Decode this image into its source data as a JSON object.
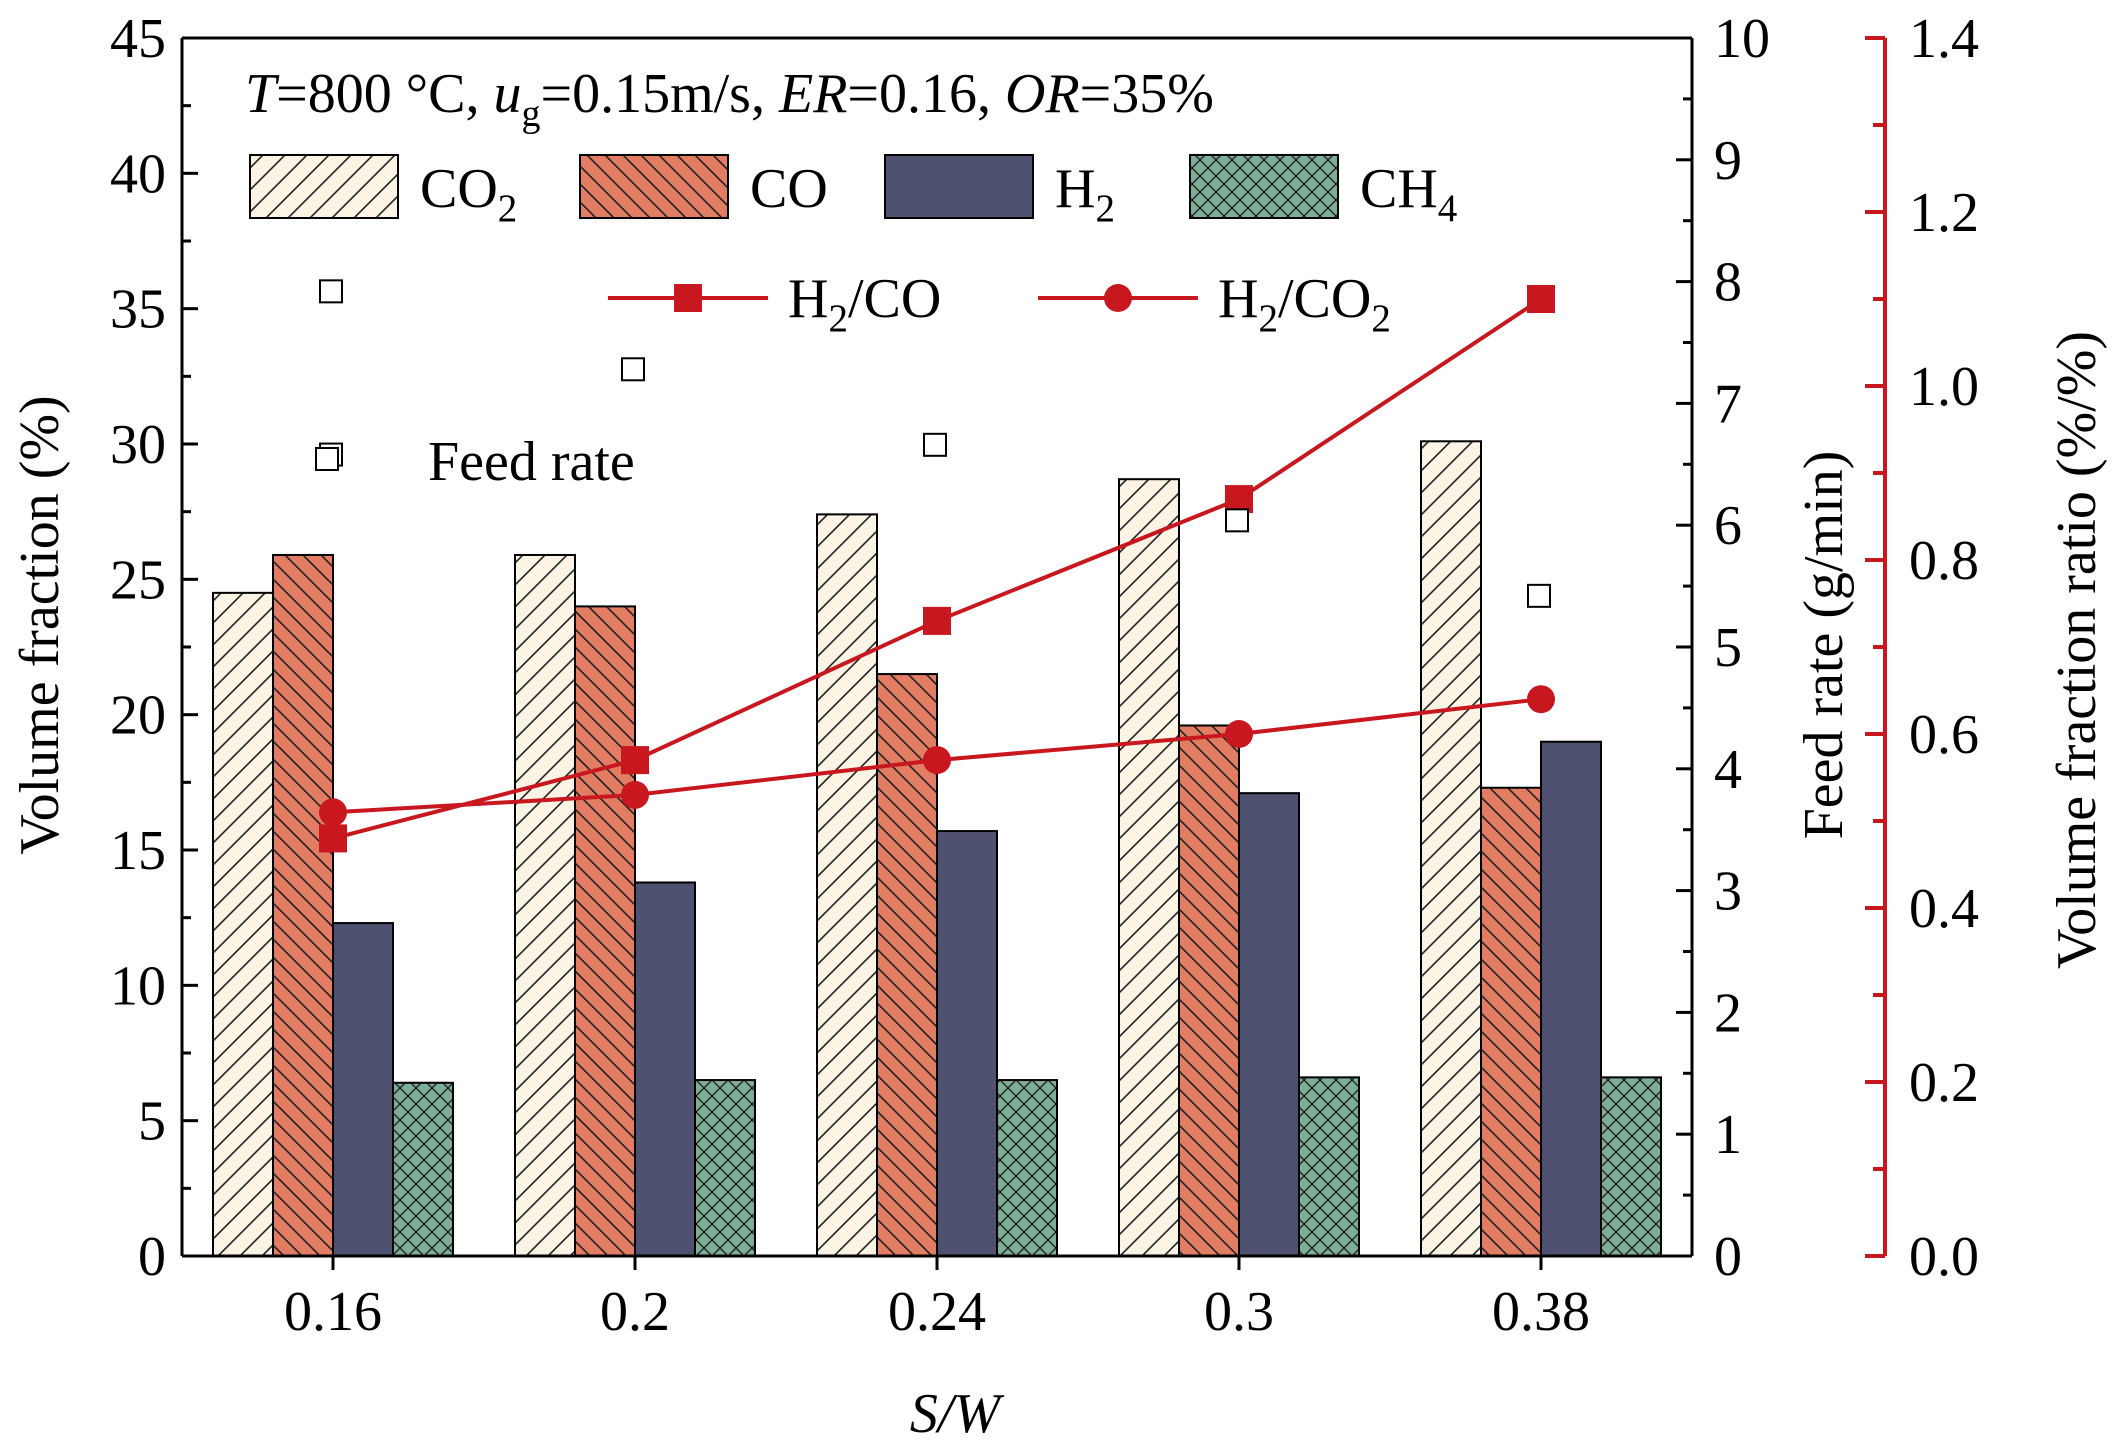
{
  "chart_data": {
    "type": "bar",
    "annotation": {
      "T_var": "T",
      "T_val": "=800 °C, ",
      "u_var": "u",
      "u_sub": "g",
      "u_val": "=0.15m/s, ",
      "ER_var": "ER",
      "ER_val": "=0.16, ",
      "OR_var": "OR",
      "OR_val": "=35%"
    },
    "xlabel": "S/W",
    "ylabel": "Volume fraction (%)",
    "y2label": "Feed rate (g/min)",
    "y3label": "Volume fraction ratio (%/%)",
    "categories": [
      "0.16",
      "0.2",
      "0.24",
      "0.3",
      "0.38"
    ],
    "ylim": [
      0,
      45
    ],
    "y_ticks": [
      "0",
      "5",
      "10",
      "15",
      "20",
      "25",
      "30",
      "35",
      "40",
      "45"
    ],
    "y2lim": [
      0,
      10
    ],
    "y2_ticks": [
      "0",
      "1",
      "2",
      "3",
      "4",
      "5",
      "6",
      "7",
      "8",
      "9",
      "10"
    ],
    "y3lim": [
      0,
      1.4
    ],
    "y3_ticks": [
      "0.0",
      "0.2",
      "0.4",
      "0.6",
      "0.8",
      "1.0",
      "1.2",
      "1.4"
    ],
    "series": [
      {
        "name": "CO2",
        "base": "CO",
        "sub": "2",
        "axis": "left",
        "values": [
          24.5,
          25.9,
          27.4,
          28.7,
          30.1
        ],
        "color": "#fbf3e3",
        "pattern": "diag-up"
      },
      {
        "name": "CO",
        "base": "CO",
        "sub": "",
        "axis": "left",
        "values": [
          25.9,
          24.0,
          21.5,
          19.6,
          17.3
        ],
        "color": "#e27c62",
        "pattern": "diag-down"
      },
      {
        "name": "H2",
        "base": "H",
        "sub": "2",
        "axis": "left",
        "values": [
          12.3,
          13.8,
          15.7,
          17.1,
          19.0
        ],
        "color": "#4f5170",
        "pattern": "none"
      },
      {
        "name": "CH4",
        "base": "CH",
        "sub": "4",
        "axis": "left",
        "values": [
          6.4,
          6.5,
          6.5,
          6.6,
          6.6
        ],
        "color": "#7cae98",
        "pattern": "crosshatch"
      }
    ],
    "line_series": [
      {
        "name": "H2/CO",
        "base": "H",
        "sub": "2",
        "tail": "/CO",
        "tail_sub": "",
        "axis": "ratio",
        "marker": "square",
        "values": [
          0.48,
          0.57,
          0.73,
          0.87,
          1.1
        ],
        "color": "#c8171e"
      },
      {
        "name": "H2/CO2",
        "base": "H",
        "sub": "2",
        "tail": "/CO",
        "tail_sub": "2",
        "axis": "ratio",
        "marker": "circle",
        "values": [
          0.51,
          0.53,
          0.57,
          0.6,
          0.64
        ],
        "color": "#c8171e"
      }
    ],
    "scatter_series": {
      "name": "Feed rate",
      "axis": "feed",
      "marker": "open-square",
      "values": [
        7.92,
        7.28,
        6.66,
        6.04,
        5.42
      ],
      "left_offset_values": [
        6.58
      ]
    }
  }
}
